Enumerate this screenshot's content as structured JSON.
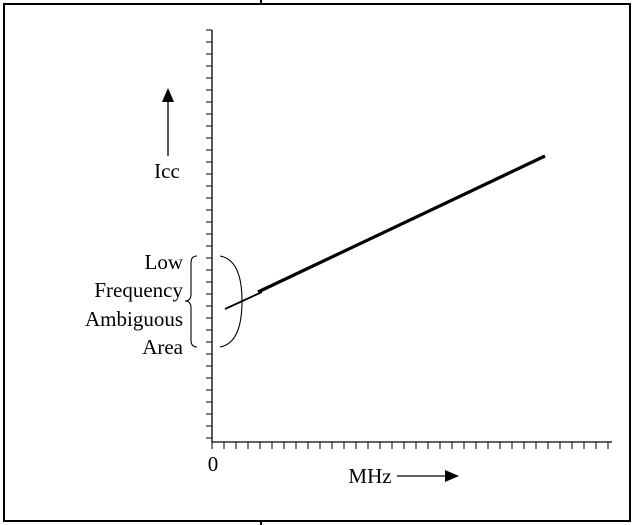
{
  "figure": {
    "y_label": "Icc",
    "x_label": "MHz",
    "origin_label": "0",
    "region_label_lines": [
      "Low",
      "Frequency",
      "Ambiguous",
      "Area"
    ]
  },
  "chart_data": {
    "type": "line",
    "ylabel": "Icc",
    "xlabel": "MHz",
    "annotations": [
      "Low Frequency Ambiguous Area"
    ]
  }
}
